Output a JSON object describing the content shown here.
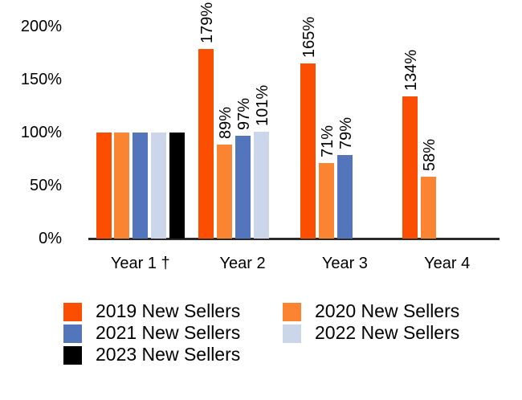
{
  "chart_data": {
    "type": "bar",
    "title": "",
    "categories": [
      "Year 1 †",
      "Year 2",
      "Year 3",
      "Year 4"
    ],
    "series": [
      {
        "name": "2019 New Sellers",
        "color": "#FC4E00",
        "values": [
          100,
          179,
          165,
          134
        ],
        "bar_labels": [
          null,
          "179%",
          "165%",
          "134%"
        ]
      },
      {
        "name": "2020 New Sellers",
        "color": "#FB8433",
        "values": [
          100,
          89,
          71,
          58
        ],
        "bar_labels": [
          null,
          "89%",
          "71%",
          "58%"
        ]
      },
      {
        "name": "2021 New Sellers",
        "color": "#5375BC",
        "values": [
          100,
          97,
          79,
          null
        ],
        "bar_labels": [
          null,
          "97%",
          "79%",
          null
        ]
      },
      {
        "name": "2022 New Sellers",
        "color": "#CCD6EB",
        "values": [
          100,
          101,
          null,
          null
        ],
        "bar_labels": [
          null,
          "101%",
          null,
          null
        ]
      },
      {
        "name": "2023 New Sellers",
        "color": "#000000",
        "values": [
          100,
          null,
          null,
          null
        ],
        "bar_labels": [
          null,
          null,
          null,
          null
        ]
      }
    ],
    "y_axis": {
      "tick_values": [
        0,
        50,
        100,
        150,
        200
      ],
      "tick_labels": [
        "0%",
        "50%",
        "100%",
        "150%",
        "200%"
      ],
      "ylim": [
        0,
        200
      ]
    },
    "data_labels": {
      "format": "{value}%",
      "rotation": -90,
      "shown_from_category_index": 1
    },
    "grid": false,
    "legend": {
      "position": "bottom",
      "columns": 2,
      "items": [
        "2019 New Sellers",
        "2020 New Sellers",
        "2021 New Sellers",
        "2022 New Sellers",
        "2023 New Sellers"
      ]
    },
    "colors": {
      "axis_line": "#2B2B2B",
      "label_text": "#000000",
      "background": "#FFFFFF"
    }
  }
}
